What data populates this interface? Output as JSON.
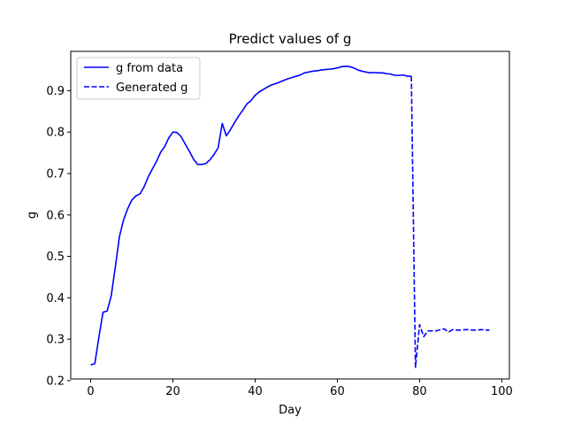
{
  "chart_data": {
    "type": "line",
    "title": "Predict values of g",
    "xlabel": "Day",
    "ylabel": "g",
    "xlim": [
      -4.85,
      101.85
    ],
    "ylim": [
      0.204,
      0.995
    ],
    "xticks": [
      0,
      20,
      40,
      60,
      80,
      100
    ],
    "yticks": [
      0.2,
      0.3,
      0.4,
      0.5,
      0.6,
      0.7,
      0.8,
      0.9
    ],
    "grid": false,
    "legend_position": "top-left",
    "series": [
      {
        "name": "g from data",
        "style": "solid",
        "color": "#0000ff",
        "x": [
          0,
          1,
          2,
          3,
          4,
          5,
          6,
          7,
          8,
          9,
          10,
          11,
          12,
          13,
          14,
          15,
          16,
          17,
          18,
          19,
          20,
          21,
          22,
          23,
          24,
          25,
          26,
          27,
          28,
          29,
          30,
          31,
          32,
          33,
          34,
          35,
          36,
          37,
          38,
          39,
          40,
          41,
          42,
          43,
          44,
          45,
          46,
          47,
          48,
          49,
          50,
          51,
          52,
          53,
          54,
          55,
          56,
          57,
          58,
          59,
          60,
          61,
          62,
          63,
          64,
          65,
          66,
          67,
          68,
          69,
          70,
          71,
          72,
          73,
          74,
          75,
          76,
          77,
          78
        ],
        "y": [
          0.238,
          0.241,
          0.305,
          0.365,
          0.368,
          0.405,
          0.475,
          0.548,
          0.588,
          0.615,
          0.636,
          0.646,
          0.651,
          0.668,
          0.692,
          0.711,
          0.729,
          0.751,
          0.765,
          0.786,
          0.8,
          0.799,
          0.789,
          0.771,
          0.754,
          0.735,
          0.722,
          0.722,
          0.724,
          0.733,
          0.746,
          0.762,
          0.821,
          0.791,
          0.806,
          0.823,
          0.839,
          0.853,
          0.868,
          0.876,
          0.889,
          0.897,
          0.903,
          0.909,
          0.914,
          0.917,
          0.921,
          0.925,
          0.929,
          0.932,
          0.935,
          0.938,
          0.943,
          0.945,
          0.947,
          0.948,
          0.95,
          0.951,
          0.952,
          0.953,
          0.955,
          0.958,
          0.959,
          0.958,
          0.955,
          0.95,
          0.947,
          0.945,
          0.943,
          0.944,
          0.943,
          0.943,
          0.941,
          0.94,
          0.937,
          0.937,
          0.938,
          0.935,
          0.935
        ]
      },
      {
        "name": "Generated g",
        "style": "dashed",
        "color": "#0000ff",
        "x": [
          78,
          79,
          80,
          81,
          82,
          83,
          84,
          85,
          86,
          87,
          88,
          89,
          90,
          91,
          92,
          93,
          94,
          95,
          96,
          97
        ],
        "y": [
          0.935,
          0.232,
          0.335,
          0.306,
          0.32,
          0.32,
          0.32,
          0.323,
          0.325,
          0.317,
          0.323,
          0.322,
          0.322,
          0.323,
          0.323,
          0.322,
          0.322,
          0.323,
          0.322,
          0.322
        ]
      }
    ]
  }
}
